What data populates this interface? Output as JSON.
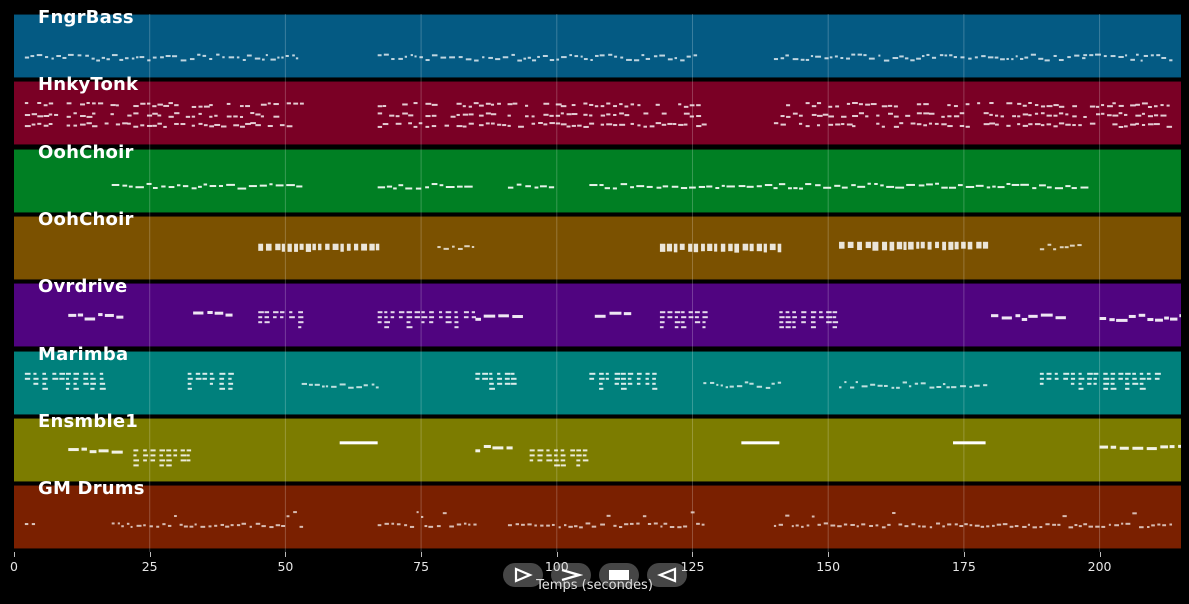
{
  "tracks": [
    {
      "name": "FngrBass",
      "color": "#045a83",
      "pattern": "bass"
    },
    {
      "name": "HnkyTonk",
      "color": "#7a0025",
      "pattern": "piano"
    },
    {
      "name": "OohChoir",
      "color": "#007f23",
      "pattern": "choir1"
    },
    {
      "name": "OohChoir",
      "color": "#7b5100",
      "pattern": "choir2"
    },
    {
      "name": "Ovrdrive",
      "color": "#500480",
      "pattern": "guitar"
    },
    {
      "name": "Marimba",
      "color": "#00807c",
      "pattern": "marimba"
    },
    {
      "name": "Ensmble1",
      "color": "#7c7c00",
      "pattern": "ensemble"
    },
    {
      "name": "GM Drums",
      "color": "#7a2000",
      "pattern": "drums"
    }
  ],
  "axis": {
    "ticks": [
      0,
      25,
      50,
      75,
      100,
      125,
      150,
      175,
      200
    ],
    "max": 215,
    "label": "Temps (secondes)"
  },
  "controls": [
    {
      "name": "play-button",
      "icon": "play-outline-icon"
    },
    {
      "name": "fast-forward-button",
      "icon": "chevron-right-icon"
    },
    {
      "name": "stop-button",
      "icon": "stop-icon"
    },
    {
      "name": "rewind-button",
      "icon": "rewind-icon"
    }
  ]
}
